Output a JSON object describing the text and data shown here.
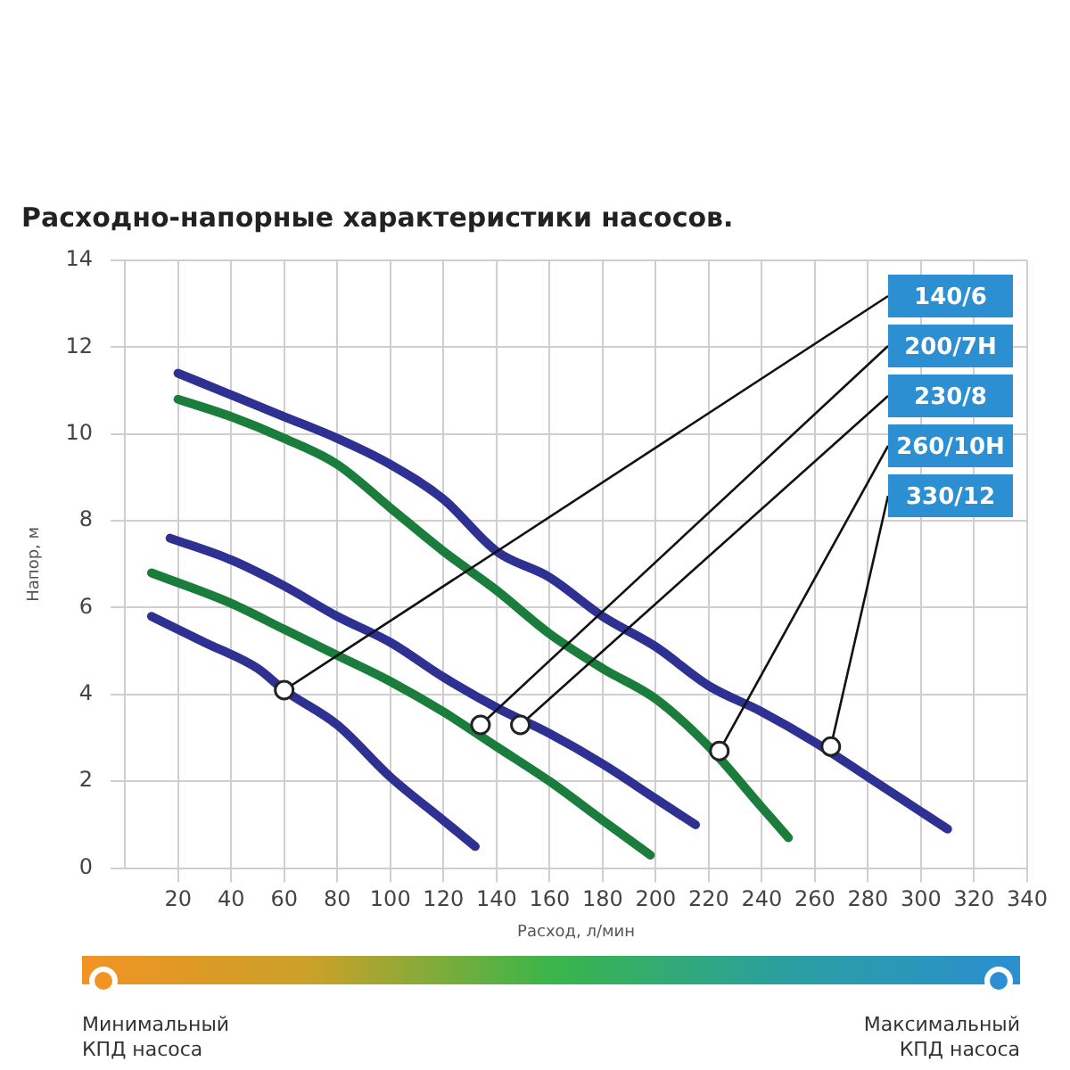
{
  "chart_data": {
    "type": "line",
    "title": "Расходно-напорные характеристики насосов.",
    "xlabel": "Расход, л/мин",
    "ylabel": "Напор, м",
    "xlim": [
      0,
      340
    ],
    "xticks": [
      20,
      40,
      60,
      80,
      100,
      120,
      140,
      160,
      180,
      200,
      220,
      240,
      260,
      280,
      300,
      320,
      340
    ],
    "ylim": [
      0,
      14
    ],
    "yticks": [
      0,
      2,
      4,
      6,
      8,
      10,
      12,
      14
    ],
    "grid": true,
    "legend": false,
    "marker": "none",
    "line_style": "solid",
    "series": [
      {
        "color": "#2e3192",
        "x": [
          10,
          30,
          50,
          60,
          80,
          100,
          120,
          132
        ],
        "values": [
          5.8,
          5.2,
          4.6,
          4.1,
          3.3,
          2.1,
          1.1,
          0.5
        ]
      },
      {
        "color": "#1b7d3c",
        "x": [
          10,
          40,
          60,
          80,
          100,
          120,
          140,
          160,
          180,
          198
        ],
        "values": [
          6.8,
          6.1,
          5.5,
          4.9,
          4.3,
          3.6,
          2.8,
          2.0,
          1.1,
          0.3
        ]
      },
      {
        "color": "#2e3192",
        "x": [
          17,
          40,
          60,
          80,
          100,
          120,
          140,
          160,
          180,
          200,
          215
        ],
        "values": [
          7.6,
          7.1,
          6.5,
          5.8,
          5.2,
          4.4,
          3.7,
          3.1,
          2.4,
          1.6,
          1.0
        ]
      },
      {
        "color": "#1b7d3c",
        "x": [
          20,
          40,
          60,
          80,
          100,
          120,
          140,
          160,
          180,
          200,
          220,
          240,
          250
        ],
        "values": [
          10.8,
          10.4,
          9.9,
          9.3,
          8.3,
          7.3,
          6.4,
          5.4,
          4.6,
          3.9,
          2.8,
          1.4,
          0.7
        ]
      },
      {
        "color": "#2e3192",
        "x": [
          20,
          40,
          60,
          80,
          100,
          120,
          140,
          160,
          180,
          200,
          220,
          240,
          260,
          280,
          300,
          310
        ],
        "values": [
          11.4,
          10.9,
          10.4,
          9.9,
          9.3,
          8.5,
          7.3,
          6.7,
          5.8,
          5.1,
          4.2,
          3.6,
          2.9,
          2.1,
          1.3,
          0.9
        ]
      }
    ],
    "annotations": [
      {
        "text": "140/6",
        "x": 60,
        "y": 4.1
      },
      {
        "text": "200/7H",
        "x": 134,
        "y": 3.3
      },
      {
        "text": "230/8",
        "x": 149,
        "y": 3.3
      },
      {
        "text": "260/10H",
        "x": 224,
        "y": 2.7
      },
      {
        "text": "330/12",
        "x": 266,
        "y": 2.8
      },
      "Минимальный КПД насоса",
      "Максимальный КПД насоса"
    ]
  }
}
